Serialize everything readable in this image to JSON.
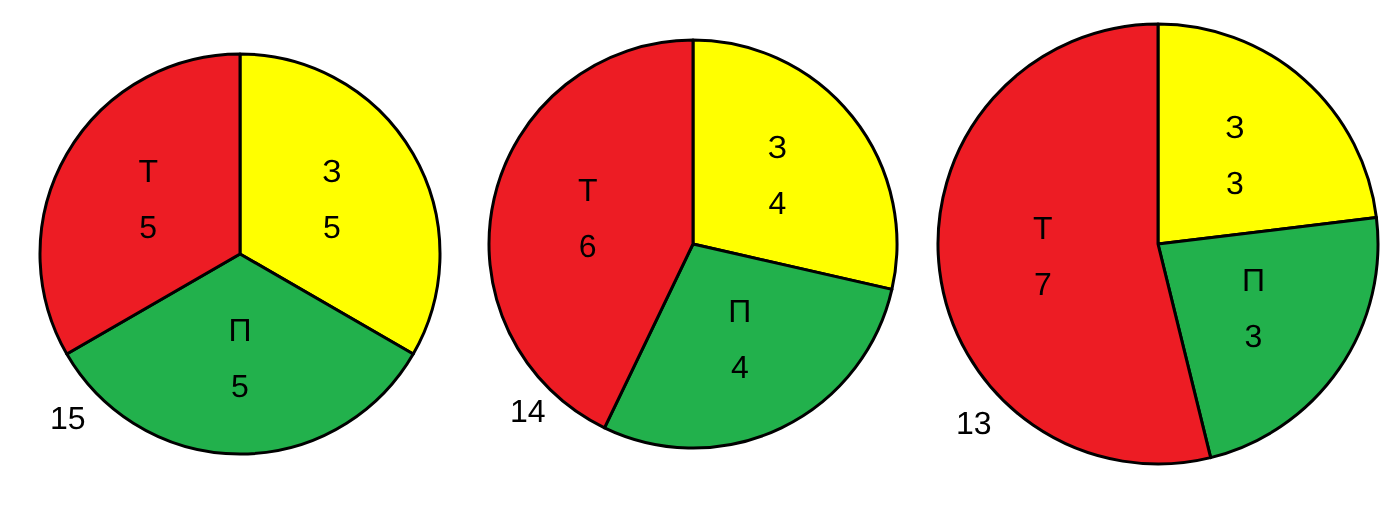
{
  "chart_data": [
    {
      "type": "pie",
      "categories": [
        "З",
        "П",
        "Т"
      ],
      "values": [
        5,
        5,
        5
      ],
      "colors": [
        "#ffff00",
        "#22b14c",
        "#ed1c24"
      ],
      "data_labels": true,
      "annotations": [
        "15"
      ]
    },
    {
      "type": "pie",
      "categories": [
        "З",
        "П",
        "Т"
      ],
      "values": [
        4,
        4,
        6
      ],
      "colors": [
        "#ffff00",
        "#22b14c",
        "#ed1c24"
      ],
      "data_labels": true,
      "annotations": [
        "14"
      ]
    },
    {
      "type": "pie",
      "categories": [
        "З",
        "П",
        "Т"
      ],
      "values": [
        3,
        3,
        7
      ],
      "colors": [
        "#ffff00",
        "#22b14c",
        "#ed1c24"
      ],
      "data_labels": true,
      "annotations": [
        "13"
      ]
    }
  ]
}
